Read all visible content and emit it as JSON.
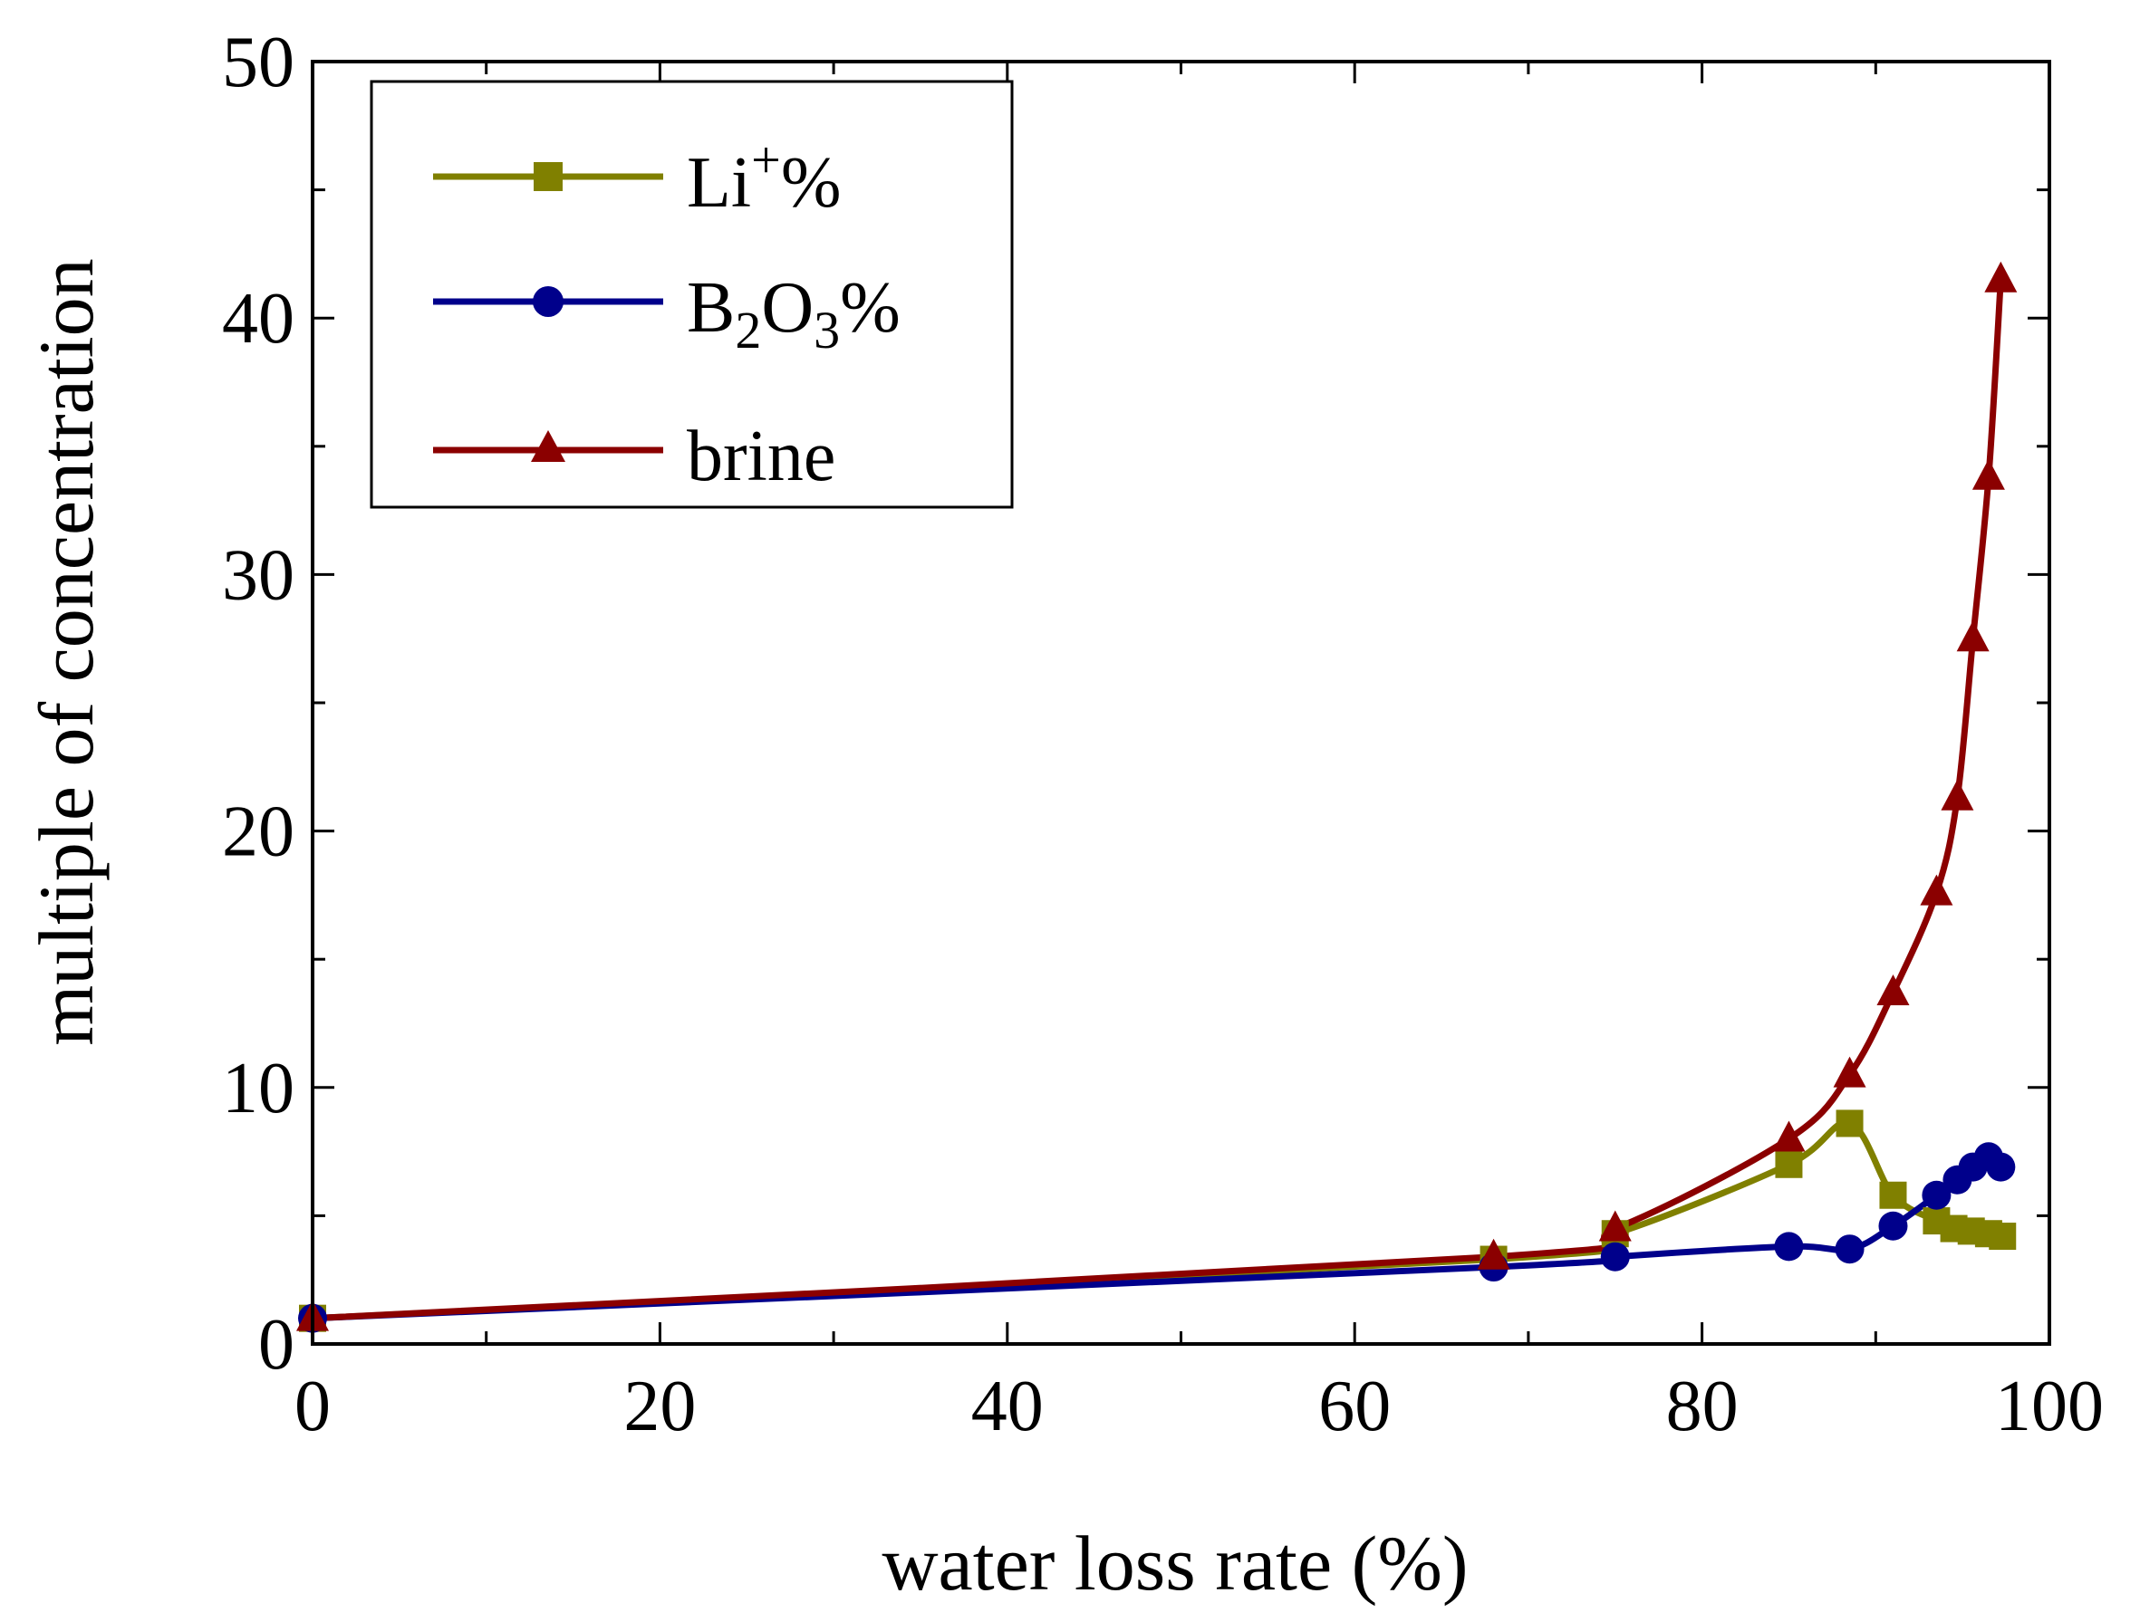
{
  "chart_data": {
    "type": "line",
    "title": "",
    "xlabel": "water loss rate (%)",
    "ylabel": "multiple of concentration",
    "xlim": [
      0,
      100
    ],
    "ylim": [
      0,
      50
    ],
    "x_ticks": [
      "0",
      "20",
      "40",
      "60",
      "80",
      "100"
    ],
    "y_ticks": [
      "0",
      "10",
      "20",
      "30",
      "40",
      "50"
    ],
    "grid": false,
    "legend_position": "top-left",
    "series": [
      {
        "name": "Li+%",
        "legend": {
          "base": "Li",
          "sup": "+",
          "tail": "%"
        },
        "color": "#808000",
        "marker": "square",
        "x": [
          0,
          68,
          75,
          85,
          88.5,
          91,
          93.5,
          94.5,
          95.5,
          96.5,
          97.3
        ],
        "y": [
          1.0,
          3.3,
          4.3,
          7.0,
          8.6,
          5.8,
          4.8,
          4.5,
          4.4,
          4.3,
          4.2
        ]
      },
      {
        "name": "B2O3%",
        "legend": {
          "base": "B",
          "sub1": "2",
          "mid": "O",
          "sub2": "3",
          "tail": "%"
        },
        "color": "#00008B",
        "marker": "circle",
        "x": [
          0,
          68,
          75,
          85,
          88.5,
          91,
          93.5,
          94.7,
          95.6,
          96.5,
          97.2
        ],
        "y": [
          1.0,
          3.0,
          3.4,
          3.8,
          3.7,
          4.6,
          5.8,
          6.4,
          6.9,
          7.3,
          6.9
        ]
      },
      {
        "name": "brine",
        "legend": {
          "base": "brine"
        },
        "color": "#8B0000",
        "marker": "triangle",
        "x": [
          0,
          68,
          75,
          85,
          88.5,
          91,
          93.5,
          94.7,
          95.6,
          96.5,
          97.2
        ],
        "y": [
          1.0,
          3.4,
          4.5,
          8.0,
          10.5,
          13.7,
          17.6,
          21.3,
          27.5,
          33.8,
          41.5
        ]
      }
    ]
  }
}
